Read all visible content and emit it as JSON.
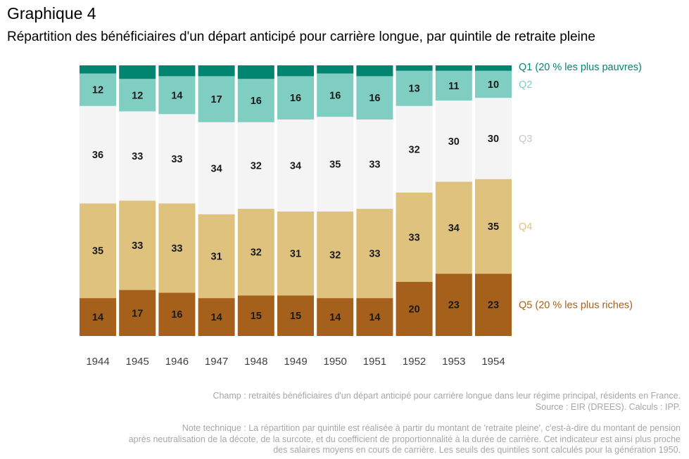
{
  "header": {
    "title": "Graphique 4",
    "subtitle": "Répartition des bénéficiaires d'un départ anticipé pour carrière longue, par quintile de retraite pleine"
  },
  "chart_data": {
    "type": "bar",
    "stacked": true,
    "normalized_to": 100,
    "categories": [
      "1944",
      "1945",
      "1946",
      "1947",
      "1948",
      "1949",
      "1950",
      "1951",
      "1952",
      "1953",
      "1954"
    ],
    "series": [
      {
        "name": "Q5 (20 % les plus riches)",
        "color": "#a5601b",
        "values": [
          14,
          17,
          16,
          14,
          15,
          15,
          14,
          14,
          20,
          23,
          23
        ],
        "labels": [
          "14",
          "17",
          "16",
          "14",
          "15",
          "15",
          "14",
          "14",
          "20",
          "23",
          "23"
        ]
      },
      {
        "name": "Q4",
        "color": "#dfc27d",
        "values": [
          35,
          33,
          33,
          31,
          32,
          31,
          32,
          33,
          33,
          34,
          35
        ],
        "labels": [
          "35",
          "33",
          "33",
          "31",
          "32",
          "31",
          "32",
          "33",
          "33",
          "34",
          "35"
        ]
      },
      {
        "name": "Q3",
        "color": "#f4f4f4",
        "values": [
          36,
          33,
          33,
          34,
          32,
          34,
          35,
          33,
          32,
          30,
          30
        ],
        "labels": [
          "36",
          "33",
          "33",
          "34",
          "32",
          "34",
          "35",
          "33",
          "32",
          "30",
          "30"
        ]
      },
      {
        "name": "Q2",
        "color": "#80cdc1",
        "values": [
          12,
          12,
          14,
          17,
          16,
          16,
          16,
          16,
          13,
          11,
          10
        ],
        "labels": [
          "12",
          "12",
          "14",
          "17",
          "16",
          "16",
          "16",
          "16",
          "13",
          "11",
          "10"
        ]
      },
      {
        "name": "Q1 (20 % les plus pauvres)",
        "color": "#018571",
        "values": [
          3,
          5,
          4,
          4,
          5,
          4,
          3,
          4,
          2,
          2,
          2
        ],
        "labels": [
          "",
          "",
          "",
          "",
          "",
          "",
          "",
          "",
          "",
          "",
          ""
        ]
      }
    ],
    "legend_placement": "right, aligned with segments",
    "grid": false,
    "ylim": [
      0,
      100
    ]
  },
  "notes": {
    "champ": "Champ : retraités bénéficiaires d'un départ anticipé pour carrière longue dans leur régime principal, résidents en France.",
    "source": "Source : EIR (DREES). Calculs : IPP.",
    "note_line1": "Note technique : La répartition par quintile est réalisée à partir du montant de 'retraite pleine', c'est-à-dire du montant de pension",
    "note_line2": "après neutralisation de la décote, de la surcote, et du coefficient de proportionnalité à la durée de carrière. Cet indicateur est ainsi plus proche",
    "note_line3": "des salaires moyens en cours de carrière. Les seuils des quintiles sont calculés pour la génération 1950."
  }
}
